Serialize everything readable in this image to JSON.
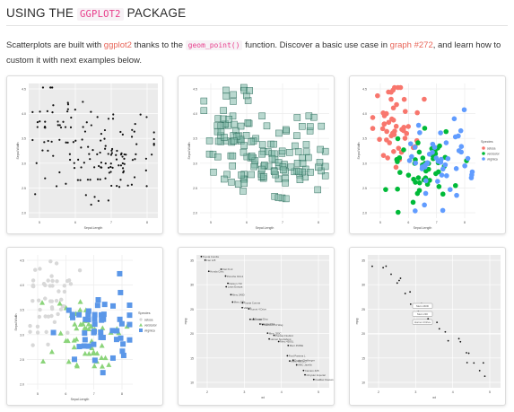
{
  "heading": {
    "prefix": "USING THE",
    "code": "GGPLOT2",
    "suffix": "PACKAGE"
  },
  "intro": {
    "t1": "Scatterplots are built with",
    "link1": "ggplot2",
    "t2": "thanks to the",
    "code": "geom_point()",
    "t3": "function. Discover a basic use case in",
    "link2": "graph #272",
    "t4": ", and learn how to custom it with next examples below."
  },
  "colors": {
    "link": "#e8665a",
    "code": "#e83e8c",
    "panel": "#ebebeb",
    "setosa": "#f8766d",
    "versicolor": "#00ba38",
    "virginica": "#619cff",
    "green_fill": "#7fb8a8"
  },
  "plots": {
    "p1": {
      "xlabel": "Sepal.Length",
      "ylabel": "Sepal.Width",
      "xticks": [
        "5",
        "6",
        "7",
        "8"
      ],
      "yticks": [
        "4.5",
        "4.0",
        "3.5",
        "3.0",
        "2.5",
        "2.0"
      ]
    },
    "p2": {
      "xlabel": "Sepal.Length",
      "ylabel": "Sepal.Width",
      "xticks": [
        "5",
        "6",
        "7",
        "8"
      ],
      "yticks": [
        "4.5",
        "4.0",
        "3.5",
        "3.0",
        "2.5",
        "2.0"
      ]
    },
    "p3": {
      "xlabel": "Sepal.Length",
      "ylabel": "Sepal.Width",
      "xticks": [
        "5",
        "6",
        "7",
        "8"
      ],
      "yticks": [
        "4.5",
        "4.0",
        "3.5",
        "3.0",
        "2.5",
        "2.0"
      ],
      "legend_title": "Species",
      "legend": [
        "setosa",
        "versicolor",
        "virginica"
      ]
    },
    "p4": {
      "xlabel": "Sepal.Length",
      "ylabel": "Sepal.Width",
      "xticks": [
        "5",
        "6",
        "7",
        "8"
      ],
      "yticks": [
        "4.5",
        "4.0",
        "3.5",
        "3.0",
        "2.5",
        "2.0"
      ],
      "legend_title": "Species",
      "legend": [
        "setosa",
        "versicolor",
        "virginica"
      ]
    },
    "p5": {
      "xlabel": "wt",
      "ylabel": "mpg",
      "xticks": [
        "2",
        "3",
        "4",
        "5"
      ],
      "yticks": [
        "35",
        "30",
        "25",
        "20",
        "15",
        "10"
      ],
      "labels": [
        "Toyota Corolla",
        "Fiat 128",
        "Honda Civic",
        "Fiat X1-9",
        "Porsche 914-2",
        "Lotus Europa",
        "Datsun 710",
        "Merc 240D",
        "Merc 230",
        "Toyota Corona",
        "Valiant",
        "Hornet 4 Drive",
        "Merc 280",
        "Ferrari Dino",
        "Mazda RX4",
        "Mazda RX4 Wag",
        "Merc 280C",
        "Hornet Sportabout",
        "Pontiac Firebird",
        "Merc 450SL",
        "Merc 450SE",
        "Ford Pantera L",
        "Merc 450SLC",
        "Dodge Challenger",
        "AMC Javelin",
        "Camaro Z28",
        "Chrysler Imperial",
        "Cadillac Fleetwood"
      ]
    },
    "p6": {
      "xlabel": "wt",
      "ylabel": "mpg",
      "xticks": [
        "2",
        "3",
        "4",
        "5"
      ],
      "yticks": [
        "35",
        "30",
        "25",
        "20",
        "15",
        "10"
      ],
      "labels": [
        "Merc 240D",
        "Merc 230",
        "Hornet 4 Drive"
      ]
    }
  }
}
